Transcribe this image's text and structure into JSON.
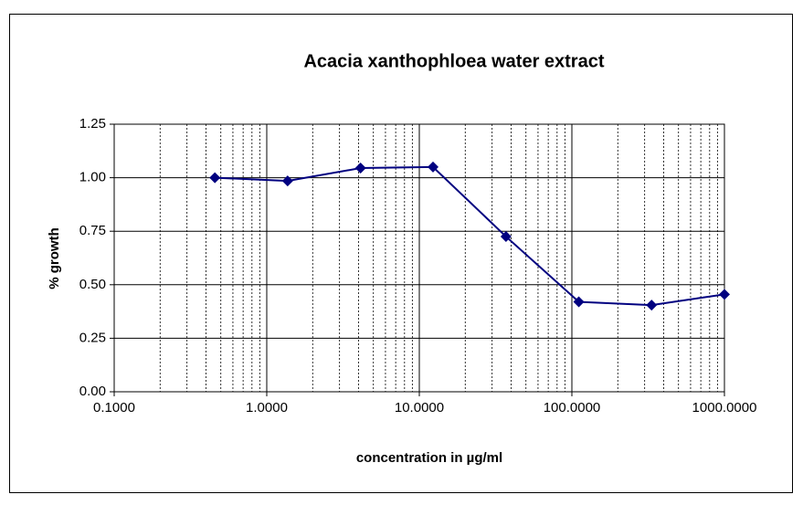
{
  "chart_data": {
    "type": "line",
    "title": "Acacia xanthophloea water extract",
    "xlabel": "concentration in µg/ml",
    "ylabel": "% growth",
    "x": [
      0.457,
      1.37,
      4.12,
      12.3,
      37,
      111,
      333,
      1000
    ],
    "series": [
      {
        "name": "% growth",
        "color": "#000080",
        "values": [
          1.0,
          0.985,
          1.045,
          1.05,
          0.725,
          0.42,
          0.405,
          0.455
        ]
      }
    ],
    "xlim": [
      0.1,
      1000
    ],
    "xscale": "log",
    "xticks": [
      {
        "value": 0.1,
        "label": "0.1000"
      },
      {
        "value": 1,
        "label": "1.0000"
      },
      {
        "value": 10,
        "label": "10.0000"
      },
      {
        "value": 100,
        "label": "100.0000"
      },
      {
        "value": 1000,
        "label": "1000.0000"
      }
    ],
    "ylim": [
      0,
      1.25
    ],
    "yticks": [
      {
        "value": 0,
        "label": "0.00"
      },
      {
        "value": 0.25,
        "label": "0.25"
      },
      {
        "value": 0.5,
        "label": "0.50"
      },
      {
        "value": 0.75,
        "label": "0.75"
      },
      {
        "value": 1,
        "label": "1.00"
      },
      {
        "value": 1.25,
        "label": "1.25"
      }
    ],
    "grid": true,
    "minor_grid": true,
    "marker": "diamond"
  }
}
